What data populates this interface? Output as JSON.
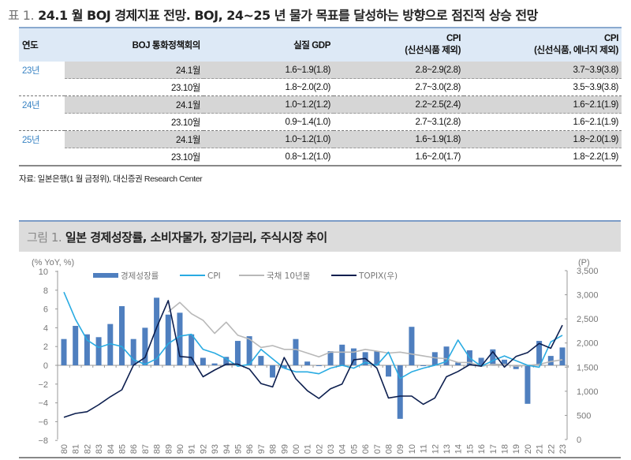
{
  "table": {
    "title_prefix": "표 1.",
    "title": "24.1 월 BOJ 경제지표 전망. BOJ, 24~25 년 물가 목표를 달성하는 방향으로 점진적 상승 전망",
    "headers": {
      "year": "연도",
      "meeting": "BOJ 통화정책회의",
      "gdp": "실질 GDP",
      "cpi1_line1": "CPI",
      "cpi1_line2": "(신선식품 제외)",
      "cpi2_line1": "CPI",
      "cpi2_line2": "(신선식품, 에너지 제외)"
    },
    "rows": [
      {
        "year": "23년",
        "meeting": "24.1월",
        "gdp": "1.6~1.9(1.8)",
        "cpi1": "2.8~2.9(2.8)",
        "cpi2": "3.7~3.9(3.8)"
      },
      {
        "year": "",
        "meeting": "23.10월",
        "gdp": "1.8~2.0(2.0)",
        "cpi1": "2.7~3.0(2.8)",
        "cpi2": "3.5~3.9(3.8)"
      },
      {
        "year": "24년",
        "meeting": "24.1월",
        "gdp": "1.0~1.2(1.2)",
        "cpi1": "2.2~2.5(2.4)",
        "cpi2": "1.6~2.1(1.9)"
      },
      {
        "year": "",
        "meeting": "23.10월",
        "gdp": "0.9~1.4(1.0)",
        "cpi1": "2.7~3.1(2.8)",
        "cpi2": "1.6~2.1(1.9)"
      },
      {
        "year": "25년",
        "meeting": "24.1월",
        "gdp": "1.0~1.2(1.0)",
        "cpi1": "1.6~1.9(1.8)",
        "cpi2": "1.8~2.0(1.9)"
      },
      {
        "year": "",
        "meeting": "23.10월",
        "gdp": "0.8~1.2(1.0)",
        "cpi1": "1.6~2.0(1.7)",
        "cpi2": "1.8~2.2(1.9)"
      }
    ],
    "source": "자료: 일본은행(1 월 금정위), 대신증권 Research Center"
  },
  "figure": {
    "title_prefix": "그림 1.",
    "title": "일본 경제성장률, 소비자물가, 장기금리, 주식시장 추이"
  },
  "colors": {
    "gdp_bar": "#4f7fbf",
    "cpi": "#29abe2",
    "jgb10y": "#b8b8b8",
    "topix": "#0d1f4f",
    "year_text": "#3a84c4",
    "header_bg": "#dde9f6"
  },
  "chart_data": {
    "type": "bar+line",
    "title": "일본 경제성장률, 소비자물가, 장기금리, 주식시장 추이",
    "ylabel": "(% YoY, %)",
    "y2label": "(P)",
    "ylim": [
      -8,
      10
    ],
    "yticks": [
      -8,
      -6,
      -4,
      -2,
      0,
      2,
      4,
      6,
      8,
      10
    ],
    "y2lim": [
      0,
      3500
    ],
    "y2ticks": [
      0,
      500,
      1000,
      1500,
      2000,
      2500,
      3000,
      3500
    ],
    "y2tick_labels": [
      "0",
      "500",
      "1,000",
      "1,500",
      "2,000",
      "2,500",
      "3,000",
      "3,500"
    ],
    "legend_position": "top",
    "grid": false,
    "categories": [
      "80",
      "81",
      "82",
      "83",
      "84",
      "85",
      "86",
      "87",
      "88",
      "89",
      "90",
      "91",
      "92",
      "93",
      "94",
      "95",
      "96",
      "97",
      "98",
      "99",
      "00",
      "01",
      "02",
      "03",
      "04",
      "05",
      "06",
      "07",
      "08",
      "09",
      "10",
      "11",
      "12",
      "13",
      "14",
      "15",
      "16",
      "17",
      "18",
      "19",
      "20",
      "21",
      "22",
      "23"
    ],
    "series": [
      {
        "name": "경제성장률",
        "type": "bar",
        "axis": "left",
        "values": [
          2.8,
          4.2,
          3.3,
          3.0,
          4.4,
          6.3,
          2.8,
          4.0,
          7.2,
          5.4,
          5.6,
          3.3,
          0.8,
          0.2,
          0.9,
          2.6,
          3.1,
          1.0,
          -1.3,
          -0.3,
          2.8,
          0.4,
          0.0,
          1.5,
          2.2,
          1.8,
          1.4,
          1.5,
          -1.2,
          -5.7,
          4.1,
          0.0,
          1.4,
          2.0,
          0.3,
          1.6,
          0.8,
          1.7,
          0.6,
          -0.4,
          -4.1,
          2.6,
          1.0,
          1.9
        ]
      },
      {
        "name": "CPI",
        "type": "line",
        "axis": "left",
        "values": [
          7.8,
          4.9,
          2.7,
          1.9,
          2.3,
          2.0,
          0.6,
          0.1,
          0.7,
          2.3,
          3.1,
          3.3,
          1.7,
          1.3,
          0.7,
          -0.1,
          0.1,
          1.7,
          0.7,
          -0.3,
          -0.7,
          -0.7,
          -0.9,
          -0.3,
          0.0,
          -0.3,
          0.3,
          0.0,
          1.4,
          -1.4,
          -0.7,
          -0.3,
          0.0,
          0.4,
          2.7,
          0.8,
          -0.1,
          0.5,
          1.0,
          0.5,
          0.0,
          -0.2,
          2.5,
          3.2
        ]
      },
      {
        "name": "국채 10년물",
        "type": "line",
        "axis": "left",
        "values": [
          null,
          null,
          null,
          null,
          null,
          null,
          null,
          null,
          null,
          5.7,
          6.7,
          5.5,
          4.8,
          3.4,
          4.6,
          3.2,
          2.8,
          1.9,
          2.1,
          1.7,
          1.7,
          1.3,
          0.9,
          1.4,
          1.4,
          1.4,
          1.7,
          1.5,
          1.3,
          1.4,
          1.2,
          1.0,
          0.8,
          0.7,
          0.3,
          0.3,
          -0.1,
          0.1,
          0.1,
          -0.1,
          0.0,
          0.1,
          0.4,
          0.6
        ]
      },
      {
        "name": "TOPIX(우)",
        "type": "line",
        "axis": "right",
        "values": [
          460,
          540,
          575,
          720,
          885,
          1030,
          1540,
          1700,
          2320,
          2880,
          1720,
          1700,
          1300,
          1440,
          1560,
          1560,
          1460,
          1160,
          1090,
          1700,
          1260,
          1010,
          850,
          1050,
          1150,
          1650,
          1680,
          1480,
          860,
          900,
          900,
          730,
          860,
          1300,
          1410,
          1550,
          1520,
          1820,
          1500,
          1720,
          1800,
          1990,
          1890,
          2370
        ]
      }
    ]
  }
}
